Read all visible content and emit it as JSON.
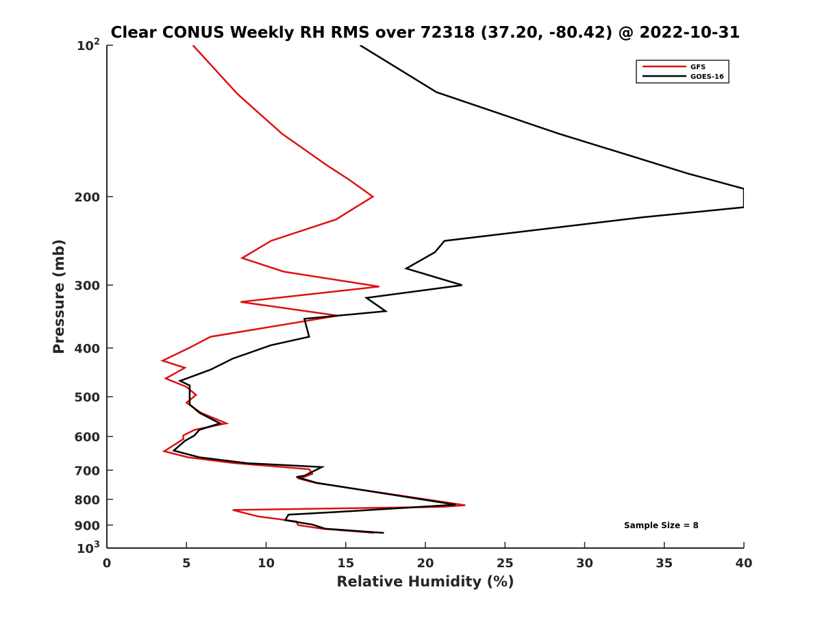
{
  "chart_data": {
    "type": "line",
    "title": "Clear CONUS Weekly RH RMS over 72318 (37.20, -80.42) @ 2022-10-31",
    "xlabel": "Relative Humidity (%)",
    "ylabel": "Pressure (mb)",
    "xlim": [
      0,
      40
    ],
    "ylim": [
      100,
      1000
    ],
    "y_scale": "log",
    "y_reversed": true,
    "x_ticks": [
      0,
      5,
      10,
      15,
      20,
      25,
      30,
      35,
      40
    ],
    "x_tick_labels": [
      "0",
      "5",
      "10",
      "15",
      "20",
      "25",
      "30",
      "35",
      "40"
    ],
    "y_ticks": [
      100,
      200,
      300,
      400,
      500,
      600,
      700,
      800,
      900,
      1000
    ],
    "y_tick_labels": [
      {
        "base": "10",
        "exp": "2"
      },
      {
        "base": "200",
        "exp": ""
      },
      {
        "base": "300",
        "exp": ""
      },
      {
        "base": "400",
        "exp": ""
      },
      {
        "base": "500",
        "exp": ""
      },
      {
        "base": "600",
        "exp": ""
      },
      {
        "base": "700",
        "exp": ""
      },
      {
        "base": "800",
        "exp": ""
      },
      {
        "base": "900",
        "exp": ""
      },
      {
        "base": "10",
        "exp": "3"
      }
    ],
    "grid": false,
    "legend": {
      "position": "top-right",
      "entries": [
        "GFS",
        "GOES-16"
      ]
    },
    "annotation": "Sample Size = 8",
    "series": [
      {
        "name": "GFS",
        "color": "#dd1111",
        "points": [
          [
            5.4,
            100
          ],
          [
            8.2,
            125
          ],
          [
            11.0,
            150
          ],
          [
            13.9,
            174
          ],
          [
            15.2,
            185
          ],
          [
            16.7,
            200
          ],
          [
            14.4,
            222
          ],
          [
            10.3,
            245
          ],
          [
            8.5,
            265
          ],
          [
            11.1,
            282
          ],
          [
            17.1,
            302
          ],
          [
            8.4,
            324
          ],
          [
            14.5,
            345
          ],
          [
            6.5,
            380
          ],
          [
            5.3,
            398
          ],
          [
            3.5,
            424
          ],
          [
            4.9,
            438
          ],
          [
            3.7,
            460
          ],
          [
            5.0,
            478
          ],
          [
            5.6,
            496
          ],
          [
            5.0,
            514
          ],
          [
            5.9,
            538
          ],
          [
            7.5,
            565
          ],
          [
            5.5,
            582
          ],
          [
            4.8,
            597
          ],
          [
            4.8,
            607
          ],
          [
            3.6,
            642
          ],
          [
            5.1,
            660
          ],
          [
            7.9,
            677
          ],
          [
            12.7,
            697
          ],
          [
            12.9,
            712
          ],
          [
            12.1,
            728
          ],
          [
            13.1,
            742
          ],
          [
            22.5,
            822
          ],
          [
            21.1,
            828
          ],
          [
            7.9,
            840
          ],
          [
            9.5,
            865
          ],
          [
            11.9,
            885
          ],
          [
            12.0,
            900
          ],
          [
            13.5,
            915
          ],
          [
            16.8,
            933
          ]
        ]
      },
      {
        "name": "GOES-16",
        "color": "#000000",
        "points": [
          [
            15.9,
            100
          ],
          [
            20.7,
            124
          ],
          [
            28.4,
            150
          ],
          [
            36.5,
            180
          ],
          [
            40.0,
            193
          ],
          [
            40.0,
            210
          ],
          [
            33.6,
            220
          ],
          [
            21.2,
            245
          ],
          [
            20.6,
            258
          ],
          [
            18.8,
            278
          ],
          [
            22.3,
            300
          ],
          [
            16.3,
            318
          ],
          [
            17.5,
            338
          ],
          [
            12.4,
            350
          ],
          [
            12.7,
            380
          ],
          [
            10.3,
            395
          ],
          [
            7.9,
            420
          ],
          [
            6.5,
            442
          ],
          [
            4.6,
            465
          ],
          [
            5.2,
            475
          ],
          [
            5.2,
            518
          ],
          [
            5.8,
            538
          ],
          [
            7.1,
            565
          ],
          [
            5.8,
            582
          ],
          [
            5.5,
            597
          ],
          [
            4.9,
            612
          ],
          [
            4.2,
            640
          ],
          [
            5.8,
            660
          ],
          [
            8.8,
            678
          ],
          [
            13.5,
            690
          ],
          [
            12.4,
            718
          ],
          [
            11.9,
            722
          ],
          [
            13.2,
            742
          ],
          [
            21.9,
            820
          ],
          [
            14.4,
            848
          ],
          [
            11.4,
            858
          ],
          [
            11.2,
            880
          ],
          [
            12.9,
            898
          ],
          [
            13.7,
            915
          ],
          [
            17.4,
            933
          ]
        ]
      }
    ]
  }
}
